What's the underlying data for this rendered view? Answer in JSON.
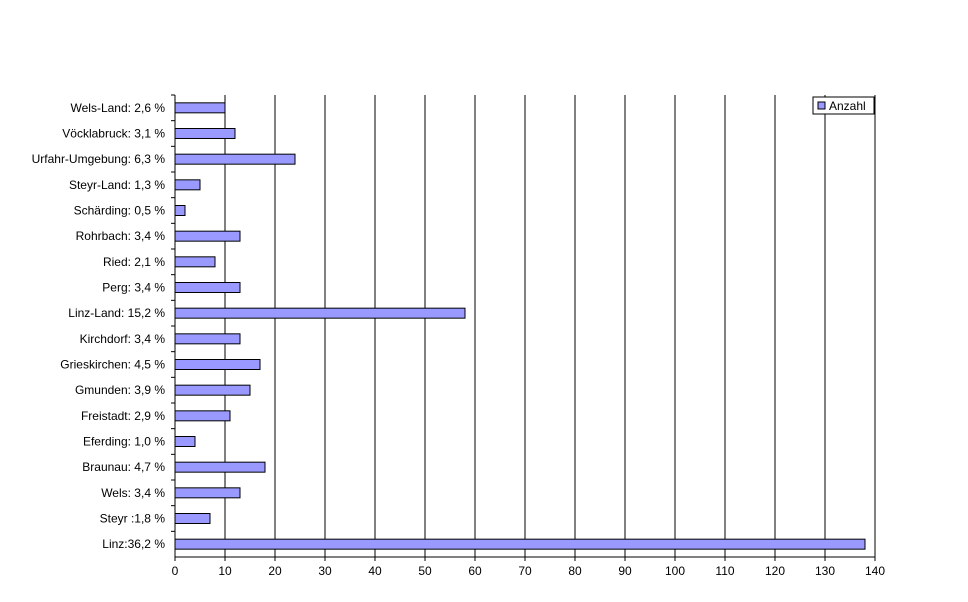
{
  "chart_data": {
    "type": "bar",
    "orientation": "horizontal",
    "categories": [
      "Linz:36,2 %",
      "Steyr :1,8 %",
      "Wels: 3,4 %",
      "Braunau: 4,7 %",
      "Eferding: 1,0 %",
      "Freistadt: 2,9 %",
      "Gmunden: 3,9 %",
      "Grieskirchen: 4,5 %",
      "Kirchdorf: 3,4 %",
      "Linz-Land: 15,2 %",
      "Perg: 3,4 %",
      "Ried: 2,1 %",
      "Rohrbach: 3,4 %",
      "Schärding: 0,5 %",
      "Steyr-Land: 1,3 %",
      "Urfahr-Umgebung: 6,3 %",
      "Vöcklabruck: 3,1 %",
      "Wels-Land: 2,6 %"
    ],
    "series": [
      {
        "name": "Anzahl",
        "values": [
          138,
          7,
          13,
          18,
          4,
          11,
          15,
          17,
          13,
          58,
          13,
          8,
          13,
          2,
          5,
          24,
          12,
          10
        ]
      }
    ],
    "xlim": [
      0,
      140
    ],
    "xticks": [
      0,
      10,
      20,
      30,
      40,
      50,
      60,
      70,
      80,
      90,
      100,
      110,
      120,
      130,
      140
    ],
    "grid": "vertical",
    "legend": "top-right",
    "colors": {
      "bar_fill": "#9999ff",
      "bar_stroke": "#000000",
      "grid": "#000000"
    }
  }
}
